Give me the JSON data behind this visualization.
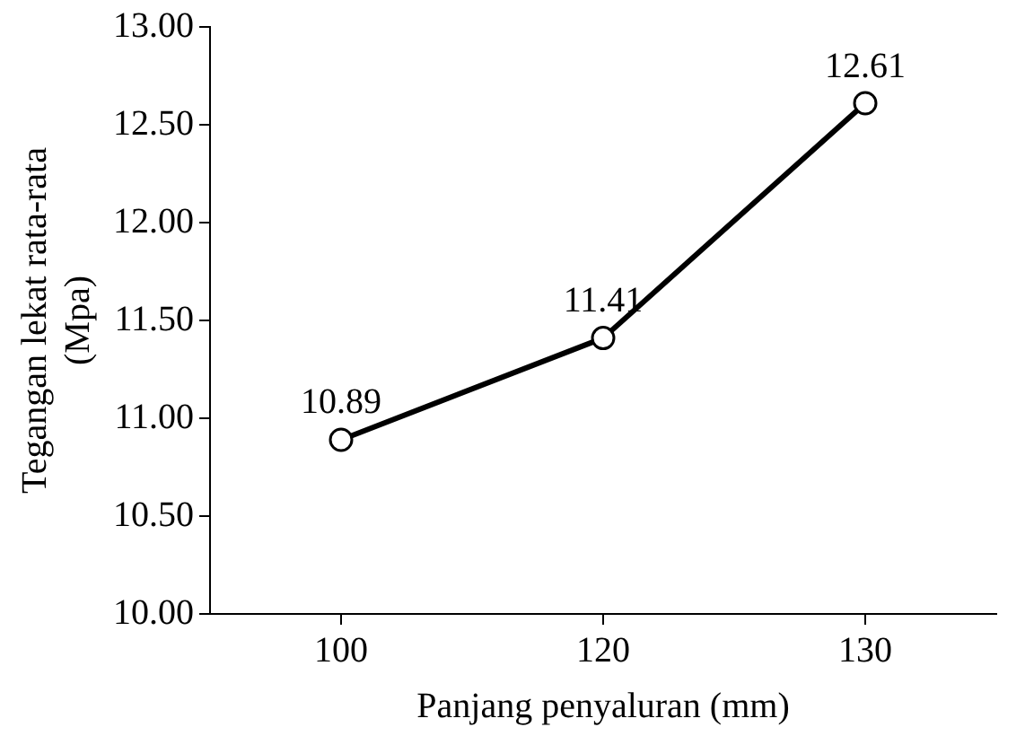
{
  "chart_data": {
    "type": "line",
    "xlabel": "Panjang penyaluran (mm)",
    "ylabel": "Tegangan lekat rata-rata\n(Mpa)",
    "categories": [
      "100",
      "120",
      "130"
    ],
    "series": [
      {
        "color": "#000000",
        "values": [
          10.89,
          11.41,
          12.61
        ]
      }
    ],
    "ylim": [
      10,
      13
    ],
    "yticks": [
      {
        "value": 10,
        "label": "10.00"
      },
      {
        "value": 10.5,
        "label": "10.50"
      },
      {
        "value": 11,
        "label": "11.00"
      },
      {
        "value": 11.5,
        "label": "11.50"
      },
      {
        "value": 12,
        "label": "12.00"
      },
      {
        "value": 12.5,
        "label": "12.50"
      },
      {
        "value": 13,
        "label": "13.00"
      }
    ],
    "grid": false,
    "legend": false,
    "marker": "circle",
    "line_style": "solid",
    "data_labels": true
  }
}
